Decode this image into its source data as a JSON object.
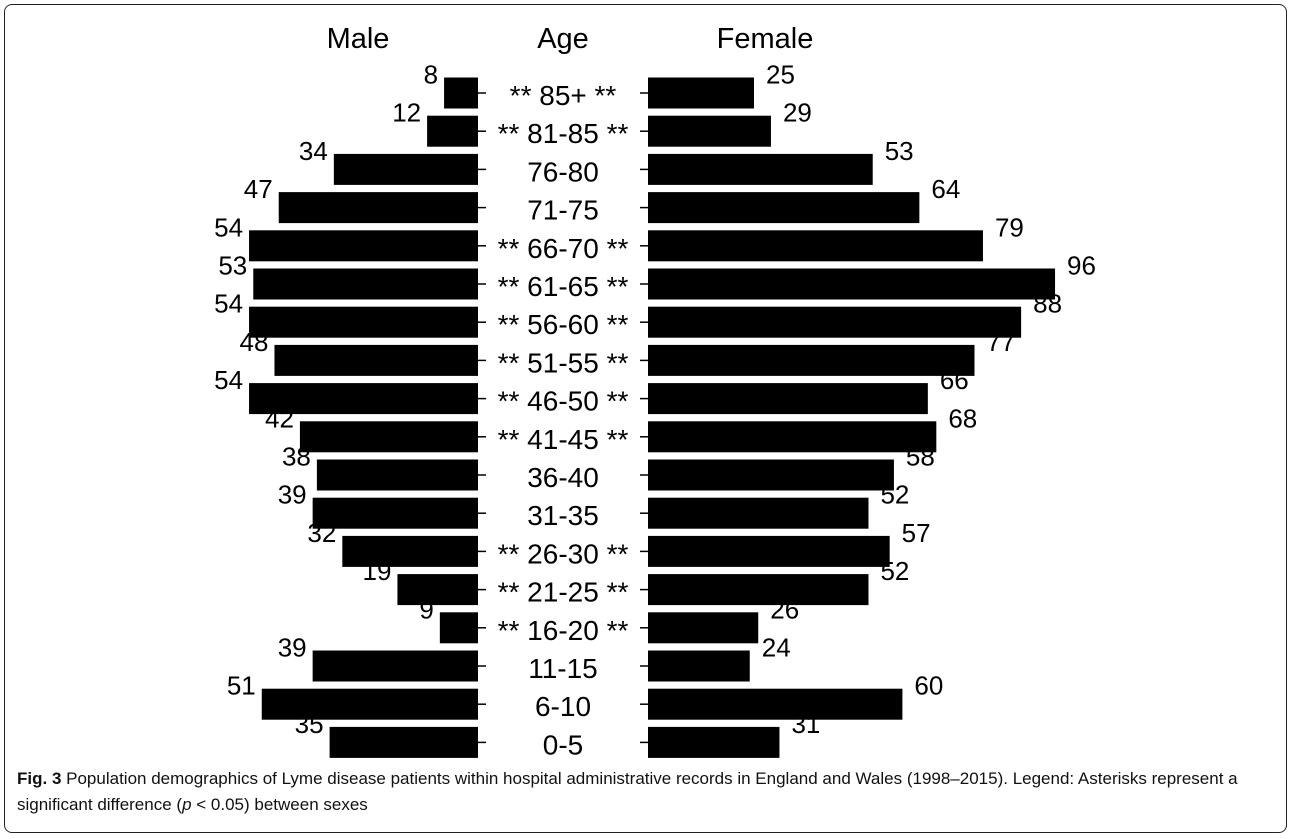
{
  "chart_data": {
    "type": "bar",
    "orientation": "horizontal-population-pyramid",
    "headers": {
      "left": "Male",
      "center": "Age",
      "right": "Female"
    },
    "categories": [
      "85+",
      "81-85",
      "76-80",
      "71-75",
      "66-70",
      "61-65",
      "56-60",
      "51-55",
      "46-50",
      "41-45",
      "36-40",
      "31-35",
      "26-30",
      "21-25",
      "16-20",
      "11-15",
      "6-10",
      "0-5"
    ],
    "significant": [
      true,
      true,
      false,
      false,
      true,
      true,
      true,
      true,
      true,
      true,
      false,
      false,
      true,
      true,
      true,
      false,
      false,
      false
    ],
    "significance_marker": "**",
    "series": [
      {
        "name": "Male",
        "values": [
          8,
          12,
          34,
          47,
          54,
          53,
          54,
          48,
          54,
          42,
          38,
          39,
          32,
          19,
          9,
          39,
          51,
          35
        ]
      },
      {
        "name": "Female",
        "values": [
          25,
          29,
          53,
          64,
          79,
          96,
          88,
          77,
          66,
          68,
          58,
          52,
          57,
          52,
          26,
          24,
          60,
          31
        ]
      }
    ],
    "bar_color": "#000000",
    "grid": false,
    "legend": "none"
  },
  "caption": {
    "label": "Fig. 3",
    "text_before_p": " Population demographics of Lyme disease patients within hospital administrative records in England and Wales (1998–2015). Legend: Asterisks represent a significant difference (",
    "p_symbol": "p",
    "text_after_p": " < 0.05) between sexes"
  }
}
